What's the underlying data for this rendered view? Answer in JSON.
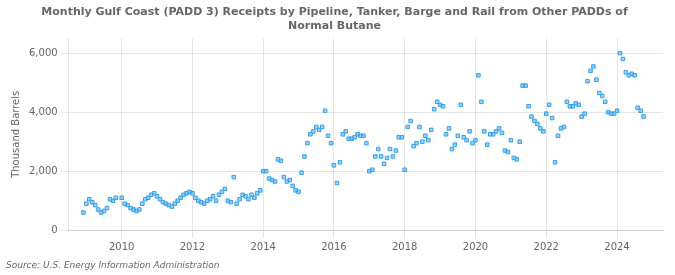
{
  "chart_data": {
    "type": "scatter",
    "title": "Monthly Gulf Coast (PADD 3) Receipts by Pipeline, Tanker, Barge and Rail from Other PADDs of\nNormal Butane",
    "ylabel": "Thousand Barrels",
    "source": "Source: U.S. Energy Information Administration",
    "marker": "square",
    "grid": true,
    "xlim": [
      2008.5,
      2025.3
    ],
    "xticks": [
      2010,
      2012,
      2014,
      2016,
      2018,
      2020,
      2022,
      2024
    ],
    "ylim": [
      0,
      6500
    ],
    "yticks": [
      0,
      {
        "value": 2000,
        "label": "2,000"
      },
      {
        "value": 4000,
        "label": "4,000"
      },
      {
        "value": 6000,
        "label": "6,000"
      }
    ],
    "x": [
      2008.917,
      2009.0,
      2009.083,
      2009.167,
      2009.25,
      2009.333,
      2009.417,
      2009.5,
      2009.583,
      2009.667,
      2009.75,
      2009.833,
      2010.0,
      2010.083,
      2010.167,
      2010.25,
      2010.333,
      2010.417,
      2010.5,
      2010.583,
      2010.667,
      2010.75,
      2010.833,
      2010.917,
      2011.0,
      2011.083,
      2011.167,
      2011.25,
      2011.333,
      2011.417,
      2011.5,
      2011.583,
      2011.667,
      2011.75,
      2011.833,
      2011.917,
      2012.0,
      2012.083,
      2012.167,
      2012.25,
      2012.333,
      2012.417,
      2012.5,
      2012.583,
      2012.667,
      2012.75,
      2012.833,
      2012.917,
      2013.0,
      2013.083,
      2013.167,
      2013.25,
      2013.333,
      2013.417,
      2013.5,
      2013.583,
      2013.667,
      2013.75,
      2013.833,
      2013.917,
      2014.0,
      2014.083,
      2014.167,
      2014.25,
      2014.333,
      2014.417,
      2014.5,
      2014.583,
      2014.667,
      2014.75,
      2014.833,
      2014.917,
      2015.0,
      2015.083,
      2015.167,
      2015.25,
      2015.333,
      2015.417,
      2015.5,
      2015.583,
      2015.667,
      2015.75,
      2015.833,
      2015.917,
      2016.0,
      2016.083,
      2016.167,
      2016.25,
      2016.333,
      2016.417,
      2016.5,
      2016.583,
      2016.667,
      2016.75,
      2016.833,
      2016.917,
      2017.0,
      2017.083,
      2017.167,
      2017.25,
      2017.333,
      2017.417,
      2017.5,
      2017.583,
      2017.667,
      2017.75,
      2017.833,
      2017.917,
      2018.0,
      2018.083,
      2018.167,
      2018.25,
      2018.333,
      2018.417,
      2018.5,
      2018.583,
      2018.667,
      2018.75,
      2018.833,
      2018.917,
      2019.0,
      2019.083,
      2019.167,
      2019.25,
      2019.333,
      2019.417,
      2019.5,
      2019.583,
      2019.667,
      2019.75,
      2019.833,
      2019.917,
      2020.0,
      2020.083,
      2020.167,
      2020.25,
      2020.333,
      2020.417,
      2020.5,
      2020.583,
      2020.667,
      2020.75,
      2020.833,
      2020.917,
      2021.0,
      2021.083,
      2021.167,
      2021.25,
      2021.333,
      2021.417,
      2021.5,
      2021.583,
      2021.667,
      2021.75,
      2021.833,
      2021.917,
      2022.0,
      2022.083,
      2022.167,
      2022.25,
      2022.333,
      2022.417,
      2022.5,
      2022.583,
      2022.667,
      2022.75,
      2022.833,
      2022.917,
      2023.0,
      2023.083,
      2023.167,
      2023.25,
      2023.333,
      2023.417,
      2023.5,
      2023.583,
      2023.667,
      2023.75,
      2023.833,
      2023.917,
      2024.0,
      2024.083,
      2024.167,
      2024.25,
      2024.333,
      2024.417,
      2024.5,
      2024.583,
      2024.667,
      2024.75
    ],
    "values": [
      600,
      900,
      1050,
      950,
      850,
      700,
      600,
      650,
      750,
      1050,
      1000,
      1100,
      1100,
      900,
      850,
      750,
      700,
      650,
      700,
      900,
      1050,
      1100,
      1200,
      1250,
      1150,
      1050,
      950,
      900,
      850,
      800,
      900,
      1000,
      1100,
      1200,
      1250,
      1300,
      1250,
      1100,
      1000,
      950,
      900,
      1000,
      1050,
      1150,
      1000,
      1200,
      1300,
      1400,
      1000,
      950,
      1800,
      900,
      1050,
      1200,
      1150,
      1050,
      1200,
      1100,
      1250,
      1350,
      2000,
      2000,
      1750,
      1700,
      1650,
      2400,
      2350,
      1800,
      1650,
      1700,
      1500,
      1350,
      1300,
      1950,
      2500,
      2950,
      3250,
      3350,
      3500,
      3400,
      3500,
      4050,
      3200,
      2950,
      2200,
      1600,
      2300,
      3250,
      3350,
      3100,
      3100,
      3150,
      3250,
      3200,
      3200,
      2950,
      2000,
      2050,
      2500,
      2750,
      2500,
      2250,
      2450,
      2750,
      2500,
      2700,
      3150,
      3150,
      2050,
      3500,
      3700,
      2850,
      2950,
      3500,
      3000,
      3200,
      3050,
      3400,
      4100,
      4350,
      4250,
      4200,
      3250,
      3450,
      2750,
      2900,
      3200,
      4250,
      3150,
      3050,
      3350,
      2950,
      3050,
      5250,
      4350,
      3350,
      2900,
      3250,
      3250,
      3350,
      3450,
      3300,
      2700,
      2650,
      3050,
      2450,
      2400,
      3000,
      4900,
      4900,
      4200,
      3850,
      3700,
      3600,
      3450,
      3350,
      3950,
      4250,
      3800,
      2300,
      3200,
      3450,
      3500,
      4350,
      4200,
      4200,
      4300,
      4250,
      3850,
      3950,
      5050,
      5400,
      5550,
      5100,
      4650,
      4550,
      4350,
      4000,
      3950,
      3950,
      4050,
      6000,
      5800,
      5350,
      5250,
      5300,
      5250,
      4150,
      4050,
      3850
    ]
  }
}
